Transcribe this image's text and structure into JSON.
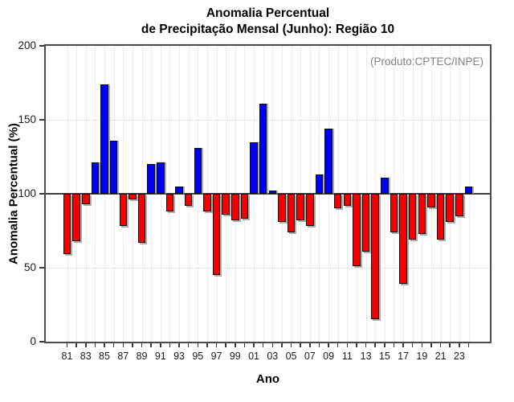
{
  "title": {
    "line1": "Anomalia Percentual",
    "line2": "de Precipitação Mensal (Junho): Região 10"
  },
  "annotation": "(Produto:CPTEC/INPE)",
  "axes": {
    "x_label": "Ano",
    "y_label": "Anomalia Percentual (%)",
    "y_ticks": [
      0,
      50,
      100,
      150,
      200
    ],
    "x_tick_labels": [
      "81",
      "83",
      "85",
      "87",
      "89",
      "91",
      "93",
      "95",
      "97",
      "99",
      "01",
      "03",
      "05",
      "07",
      "09",
      "11",
      "13",
      "15",
      "17",
      "19",
      "21",
      "23"
    ]
  },
  "colors": {
    "above_baseline": "#0000f2",
    "below_baseline": "#f50000",
    "baseline_line": "#3d3d3d",
    "grid": "#dedede",
    "box_border": "#4c4c4c",
    "annotation_text": "#828282"
  },
  "chart_data": {
    "type": "bar",
    "title": "Anomalia Percentual de Precipitação Mensal (Junho): Região 10",
    "xlabel": "Ano",
    "ylabel": "Anomalia Percentual (%)",
    "ylim": [
      0,
      200
    ],
    "baseline": 100,
    "grid_y": [
      50,
      150
    ],
    "grid": "dotted, vertical line per year",
    "legend_position": "none",
    "annotation": "(Produto:CPTEC/INPE)",
    "categories": [
      "81",
      "82",
      "83",
      "84",
      "85",
      "86",
      "87",
      "88",
      "89",
      "90",
      "91",
      "92",
      "93",
      "94",
      "95",
      "96",
      "97",
      "98",
      "99",
      "00",
      "01",
      "02",
      "03",
      "04",
      "05",
      "06",
      "07",
      "08",
      "09",
      "10",
      "11",
      "12",
      "13",
      "14",
      "15",
      "16",
      "17",
      "18",
      "19",
      "20",
      "21",
      "22",
      "23",
      "24"
    ],
    "values": [
      59,
      68,
      93,
      121,
      174,
      136,
      78,
      96,
      67,
      120,
      121,
      88,
      105,
      92,
      131,
      88,
      45,
      86,
      82,
      83,
      135,
      161,
      102,
      81,
      74,
      82,
      78,
      113,
      144,
      90,
      92,
      51,
      61,
      15,
      111,
      74,
      39,
      69,
      73,
      91,
      69,
      81,
      85,
      105
    ],
    "color_rule": "blue if value >= 100 else red"
  }
}
